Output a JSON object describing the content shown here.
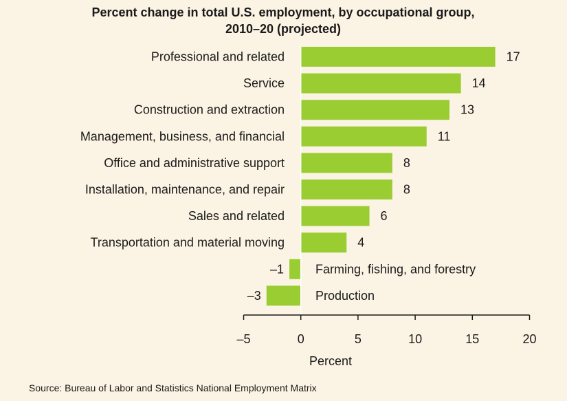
{
  "chart_data": {
    "type": "bar",
    "orientation": "horizontal",
    "title_lines": [
      "Percent change in total U.S. employment, by occupational group,",
      "2010–20 (projected)"
    ],
    "categories": [
      "Professional and related",
      "Service",
      "Construction and extraction",
      "Management, business, and financial",
      "Office and administrative support",
      "Installation, maintenance, and repair",
      "Sales and related",
      "Transportation and material moving",
      "Farming, fishing, and forestry",
      "Production"
    ],
    "values": [
      17,
      14,
      13,
      11,
      8,
      8,
      6,
      4,
      -1,
      -3
    ],
    "value_labels": [
      "17",
      "14",
      "13",
      "11",
      "8",
      "8",
      "6",
      "4",
      "–1",
      "–3"
    ],
    "xlim": [
      -5,
      20
    ],
    "xticks": [
      -5,
      0,
      5,
      10,
      15,
      20
    ],
    "xtick_labels": [
      "–5",
      "0",
      "5",
      "10",
      "15",
      "20"
    ],
    "xlabel": "Percent",
    "ylabel": "",
    "grid": false,
    "bar_color": "#9acd32",
    "source": "Source: Bureau of Labor and Statistics National Employment Matrix"
  }
}
